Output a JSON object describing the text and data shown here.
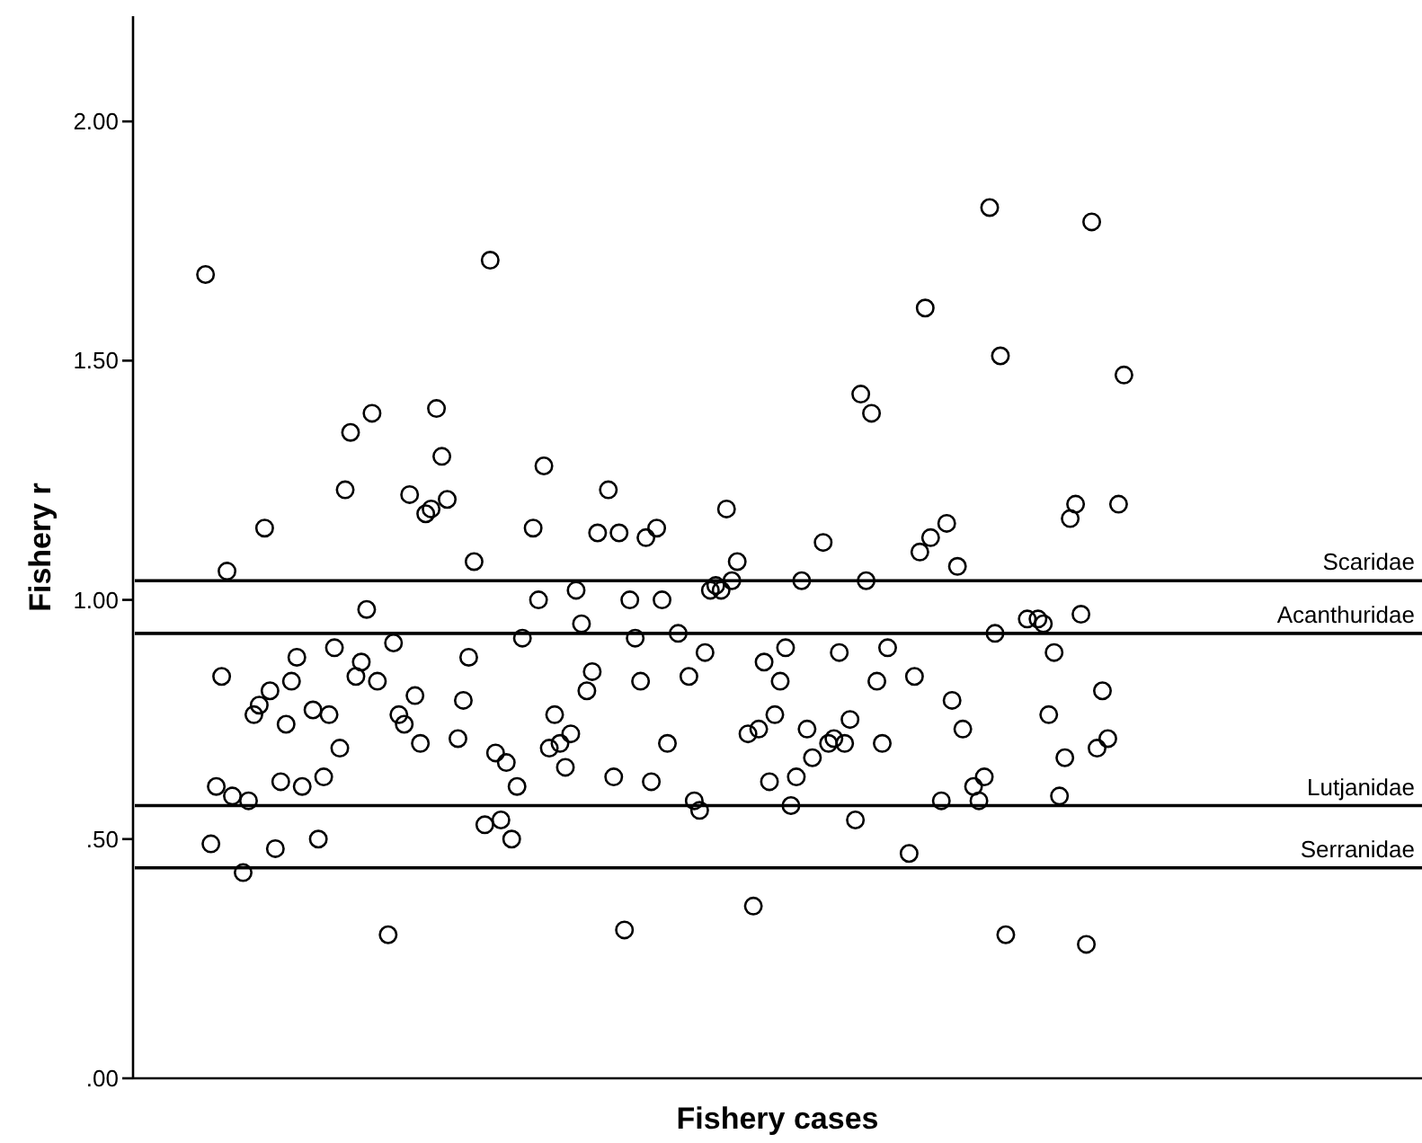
{
  "chart_data": {
    "type": "scatter",
    "xlabel": "Fishery cases",
    "ylabel": "Fishery r",
    "categories": [
      null,
      null,
      null,
      null,
      null,
      null,
      null,
      null,
      null,
      null,
      null,
      null,
      null,
      null,
      null,
      null,
      null,
      null,
      null,
      null,
      null,
      null,
      null,
      null,
      null,
      null,
      null,
      null,
      null,
      null,
      null,
      null,
      null,
      null,
      null,
      null,
      null,
      null,
      null,
      null,
      null,
      null,
      null,
      null,
      null,
      null,
      null,
      null,
      null,
      null,
      null,
      null,
      null,
      null,
      null,
      null,
      null,
      null,
      null,
      null,
      null,
      null,
      null,
      null,
      null,
      null,
      null,
      null,
      null,
      null,
      null,
      null,
      null,
      null,
      null,
      null,
      null,
      null,
      null,
      null,
      null,
      null,
      null,
      null,
      null,
      null,
      null,
      null,
      null,
      null,
      null,
      null,
      null,
      null,
      null,
      null,
      null,
      null,
      null,
      null,
      null,
      null,
      null,
      null,
      null,
      null,
      null,
      null,
      null,
      null,
      null,
      null,
      null,
      null,
      null,
      null,
      null,
      null,
      null,
      null,
      null,
      null,
      null,
      null,
      null,
      null,
      null,
      null,
      null,
      null,
      null,
      null,
      null,
      null,
      null,
      null,
      null,
      null,
      null,
      null,
      null,
      null,
      null,
      null,
      null,
      null,
      null,
      null,
      null,
      null,
      null,
      null,
      null,
      null,
      null,
      null,
      null,
      null,
      null,
      null,
      null,
      null,
      null,
      null,
      null,
      null,
      null,
      null,
      null,
      null,
      null,
      null,
      null,
      null,
      null,
      null,
      null,
      null,
      null,
      null,
      null,
      null,
      null,
      null,
      null,
      null,
      null,
      null,
      null,
      null,
      null,
      null,
      null,
      null,
      null,
      null,
      null,
      null,
      null,
      null,
      null,
      null,
      null,
      null,
      null,
      null,
      null,
      null,
      null,
      null,
      null,
      null,
      null,
      null,
      null,
      null,
      null,
      null,
      null,
      null,
      null,
      null,
      null,
      null,
      null,
      null,
      null,
      null,
      null,
      null,
      null,
      null,
      null,
      null,
      null,
      null,
      null,
      null,
      null,
      null
    ],
    "ylim": [
      0,
      2.22
    ],
    "yticks": [
      {
        "value": 0,
        "label": ".00"
      },
      {
        "value": 0.5,
        "label": ".50"
      },
      {
        "value": 1,
        "label": "1.00"
      },
      {
        "value": 1.5,
        "label": "1.50"
      },
      {
        "value": 2,
        "label": "2.00"
      }
    ],
    "tick_labels": "y",
    "marker": "circle",
    "series": [
      {
        "color": "#000000",
        "values": [
          null,
          null,
          null,
          null,
          null,
          null,
          null,
          null,
          null,
          null,
          null,
          null,
          null,
          1.68,
          0.49,
          0.61,
          0.84,
          1.06,
          0.59,
          null,
          0.43,
          0.58,
          0.76,
          0.78,
          1.15,
          0.81,
          0.48,
          0.62,
          0.74,
          0.83,
          0.88,
          0.61,
          null,
          0.77,
          0.5,
          0.63,
          0.76,
          0.9,
          0.69,
          1.23,
          1.35,
          0.84,
          0.87,
          0.98,
          1.39,
          0.83,
          null,
          0.3,
          0.91,
          0.76,
          0.74,
          1.22,
          0.8,
          0.7,
          1.18,
          1.19,
          1.4,
          1.3,
          1.21,
          null,
          0.71,
          0.79,
          0.88,
          1.08,
          null,
          0.53,
          1.71,
          0.68,
          0.54,
          0.66,
          0.5,
          0.61,
          0.92,
          null,
          1.15,
          1.0,
          1.28,
          0.69,
          0.76,
          0.7,
          0.65,
          0.72,
          1.02,
          0.95,
          0.81,
          0.85,
          1.14,
          null,
          1.23,
          0.63,
          1.14,
          0.31,
          1.0,
          0.92,
          0.83,
          1.13,
          0.62,
          1.15,
          1.0,
          0.7,
          null,
          0.93,
          null,
          0.84,
          0.58,
          0.56,
          0.89,
          1.02,
          1.03,
          1.02,
          1.19,
          1.04,
          1.08,
          null,
          0.72,
          0.36,
          0.73,
          0.87,
          0.62,
          0.76,
          0.83,
          0.9,
          0.57,
          0.63,
          1.04,
          0.73,
          0.67,
          null,
          1.12,
          0.7,
          0.71,
          0.89,
          0.7,
          0.75,
          0.54,
          1.43,
          1.04,
          1.39,
          0.83,
          0.7,
          0.9,
          null,
          null,
          null,
          0.47,
          0.84,
          1.1,
          1.61,
          1.13,
          null,
          0.58,
          1.16,
          0.79,
          1.07,
          0.73,
          null,
          0.61,
          0.58,
          0.63,
          1.82,
          0.93,
          1.51,
          0.3,
          null,
          null,
          null,
          0.96,
          null,
          0.96,
          0.95,
          0.76,
          0.89,
          0.59,
          0.67,
          1.17,
          1.2,
          0.97,
          0.28,
          1.79,
          0.69,
          0.81,
          0.71,
          null,
          1.2,
          1.47,
          null,
          null,
          null,
          null,
          null,
          null,
          null,
          null,
          null,
          null,
          null,
          null,
          null,
          null,
          null,
          null,
          null,
          null,
          null,
          null,
          null,
          null,
          null,
          null,
          null,
          null,
          null,
          null,
          null,
          null,
          null,
          null,
          null,
          null,
          null,
          null,
          null,
          null,
          null,
          null,
          null,
          null,
          null,
          null,
          null,
          null,
          null,
          null,
          null,
          null,
          null,
          null,
          null,
          null,
          null
        ]
      }
    ],
    "ref_lines": [
      {
        "axis": "y",
        "value": 1.04,
        "label": "Scaridae",
        "color": "#000000"
      },
      {
        "axis": "y",
        "value": 0.93,
        "label": "Acanthuridae",
        "color": "#000000"
      },
      {
        "axis": "y",
        "value": 0.57,
        "label": "Lutjanidae",
        "color": "#000000"
      },
      {
        "axis": "y",
        "value": 0.44,
        "label": "Serranidae",
        "color": "#000000"
      }
    ]
  }
}
